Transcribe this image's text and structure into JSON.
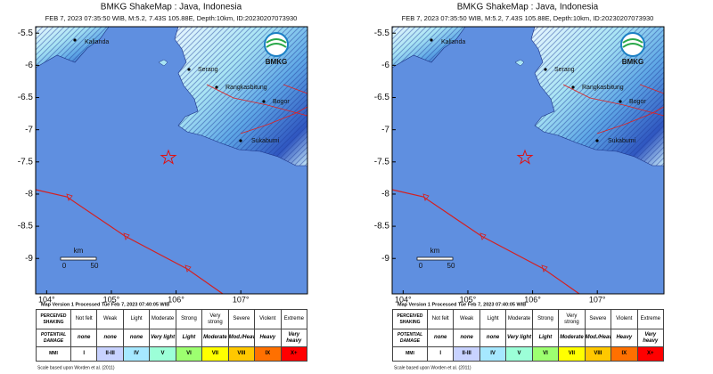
{
  "panels": [
    {
      "title": "BMKG ShakeMap : Java, Indonesia",
      "subtitle": "FEB 7, 2023 07:35:50 WIB, M:5.2, 7.43S 105.88E, Depth:10km, ID:20230207073930",
      "logo": "BMKG",
      "ylim": [
        -9.55,
        -5.4
      ],
      "yticks": [
        -5.5,
        -6,
        -6.5,
        -7,
        -7.5,
        -8,
        -8.5,
        -9
      ],
      "xlim": [
        103.83,
        108.03
      ],
      "xticks": [
        {
          "value": 104,
          "label": "104°"
        },
        {
          "value": 105,
          "label": "105°"
        },
        {
          "value": 106,
          "label": "106°"
        },
        {
          "value": 107,
          "label": "107°"
        }
      ],
      "places": [
        "Kalianda",
        "Serang",
        "Rangkasbitung",
        "Bogor",
        "Sukabumi"
      ],
      "scale_bar": {
        "unit": "km",
        "labels": [
          "0",
          "50"
        ]
      },
      "version_note": "Map Version 1 Processed Tue Feb 7, 2023 07:40:05 WIB",
      "legend": {
        "row_headers": [
          "PERCEIVED SHAKING",
          "POTENTIAL DAMAGE",
          "MMI"
        ],
        "shaking": [
          "Not felt",
          "Weak",
          "Light",
          "Moderate",
          "Strong",
          "Very strong",
          "Severe",
          "Violent",
          "Extreme"
        ],
        "damage": [
          "none",
          "none",
          "none",
          "Very light",
          "Light",
          "Moderate",
          "Mod./Heavy",
          "Heavy",
          "Very heavy"
        ],
        "mmi": [
          "I",
          "II-III",
          "IV",
          "V",
          "VI",
          "VII",
          "VIII",
          "IX",
          "X+"
        ],
        "colors": [
          "#ffffff",
          "#c8d2ff",
          "#a6e8ff",
          "#9cffd8",
          "#9dff70",
          "#ffff00",
          "#ffc800",
          "#ff7000",
          "#ff0000"
        ]
      },
      "footnote": "Scale based upon Worden et al. (2011)"
    },
    {
      "title": "BMKG ShakeMap : Java, Indonesia",
      "subtitle": "FEB 7, 2023 07:35:50 WIB, M:5.2, 7.43S 105.88E, Depth:10km, ID:20230207073930",
      "logo": "BMKG",
      "ylim": [
        -9.55,
        -5.4
      ],
      "yticks": [
        -5.5,
        -6,
        -6.5,
        -7,
        -7.5,
        -8,
        -8.5,
        -9
      ],
      "xlim": [
        103.83,
        108.03
      ],
      "xticks": [
        {
          "value": 104,
          "label": "104°"
        },
        {
          "value": 105,
          "label": "105°"
        },
        {
          "value": 106,
          "label": "106°"
        },
        {
          "value": 107,
          "label": "107°"
        }
      ],
      "places": [
        "Kalianda",
        "Serang",
        "Rangkasbitung",
        "Bogor",
        "Sukabumi"
      ],
      "scale_bar": {
        "unit": "km",
        "labels": [
          "0",
          "50"
        ]
      },
      "version_note": "Map Version 1 Processed Tue Feb 7, 2023 07:40:05 WIB",
      "legend": {
        "row_headers": [
          "PERCEIVED SHAKING",
          "POTENTIAL DAMAGE",
          "MMI"
        ],
        "shaking": [
          "Not felt",
          "Weak",
          "Light",
          "Moderate",
          "Strong",
          "Very strong",
          "Severe",
          "Violent",
          "Extreme"
        ],
        "damage": [
          "none",
          "none",
          "none",
          "Very light",
          "Light",
          "Moderate",
          "Mod./Heavy",
          "Heavy",
          "Very heavy"
        ],
        "mmi": [
          "I",
          "II-III",
          "IV",
          "V",
          "VI",
          "VII",
          "VIII",
          "IX",
          "X+"
        ],
        "colors": [
          "#ffffff",
          "#c8d2ff",
          "#a6e8ff",
          "#9cffd8",
          "#9dff70",
          "#ffff00",
          "#ffc800",
          "#ff7000",
          "#ff0000"
        ]
      },
      "footnote": "Scale based upon Worden et al. (2011)"
    }
  ]
}
